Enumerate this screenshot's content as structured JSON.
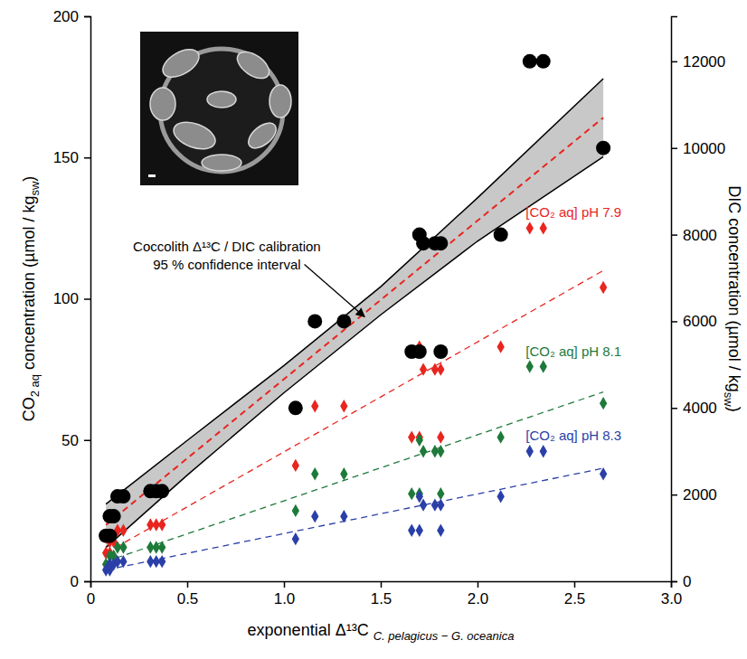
{
  "chart_data": {
    "type": "scatter",
    "xlabel": "exponential Δ¹³C",
    "xlabel_subscript": "C. pelagicus − G. oceanica",
    "ylabel": [
      "CO",
      "2 aq",
      " concentration (µmol / kg",
      "sw",
      ")"
    ],
    "y2label": [
      "DIC concentration (µmol / kg",
      "sw",
      ")"
    ],
    "annotation": {
      "text": [
        "Coccolith Δ¹³C / DIC calibration",
        "95 % confidence interval"
      ]
    },
    "xlim": [
      0,
      3
    ],
    "xticks": [
      0,
      0.5,
      {
        "value": 1,
        "label": "1.0"
      },
      1.5,
      {
        "value": 2,
        "label": "2.0"
      },
      2.5,
      {
        "value": 3,
        "label": "3.0"
      }
    ],
    "ylim": [
      0,
      200
    ],
    "yticks": [
      0,
      50,
      100,
      150,
      200
    ],
    "y2lim": [
      0,
      13040
    ],
    "y2ticks": [
      0,
      2000,
      4000,
      6000,
      8000,
      10000,
      12000
    ],
    "grid": false,
    "x": [
      0.08,
      0.1,
      0.1,
      0.12,
      0.14,
      0.17,
      0.31,
      0.34,
      0.37,
      1.06,
      1.16,
      1.31,
      1.66,
      1.7,
      1.7,
      1.72,
      1.78,
      1.81,
      1.81,
      2.12,
      2.27,
      2.34,
      2.65
    ],
    "series": [
      {
        "axis": "y2",
        "color": "#000000",
        "marker": "circle",
        "values": [
          1050,
          1050,
          1500,
          1500,
          1960,
          1960,
          2080,
          2080,
          2080,
          4000,
          6000,
          6000,
          5300,
          5300,
          8000,
          7800,
          7800,
          7800,
          5300,
          8000,
          12000,
          12000,
          10000
        ],
        "fit": {
          "x": [
            0.08,
            2.65
          ],
          "values": [
            1300,
            10700
          ],
          "color": "#e8251f",
          "line_style": "dashed"
        },
        "band": {
          "x": [
            0.08,
            0.5,
            1.0,
            1.5,
            2.0,
            2.65
          ],
          "lower": [
            780,
            2450,
            4350,
            6150,
            7850,
            9800
          ],
          "upper": [
            1780,
            3250,
            4980,
            6800,
            8850,
            11600
          ],
          "color": "#c8c8c8"
        }
      },
      {
        "name": "[CO₂ aq] pH 7.9",
        "color": "#e8251f",
        "marker": "diamond",
        "values": [
          10,
          10,
          14,
          14,
          18,
          18,
          20,
          20,
          20,
          41,
          62,
          62,
          51,
          51,
          83,
          75,
          75,
          75,
          51,
          83,
          125,
          125,
          104
        ],
        "fit": {
          "x": [
            0.08,
            2.65
          ],
          "values": [
            10,
            110
          ],
          "line_style": "dashed"
        }
      },
      {
        "name": "[CO₂ aq] pH 8.1",
        "color": "#1e7a3a",
        "marker": "diamond",
        "values": [
          6,
          6,
          9,
          9,
          12,
          12,
          12,
          12,
          12,
          25,
          38,
          38,
          31,
          31,
          50,
          46,
          46,
          46,
          31,
          51,
          76,
          76,
          63
        ],
        "fit": {
          "x": [
            0.08,
            2.65
          ],
          "values": [
            7,
            67
          ],
          "line_style": "dashed"
        }
      },
      {
        "name": "[CO₂ aq] pH 8.3",
        "color": "#2a3fa8",
        "marker": "diamond",
        "values": [
          4,
          4,
          6,
          6,
          7,
          7,
          7,
          7,
          7,
          15,
          23,
          23,
          18,
          18,
          30,
          27,
          27,
          27,
          18,
          30,
          46,
          46,
          38
        ],
        "fit": {
          "x": [
            0.08,
            2.65
          ],
          "values": [
            4,
            40
          ],
          "line_style": "dashed"
        }
      }
    ]
  }
}
